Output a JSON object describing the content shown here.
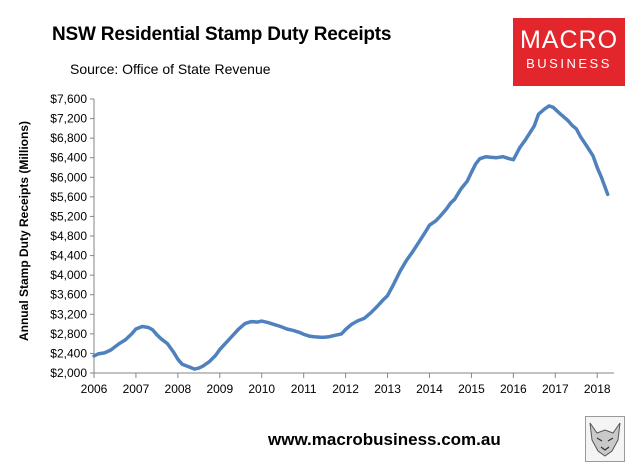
{
  "header": {
    "title": "NSW Residential Stamp Duty Receipts",
    "source": "Source: Office of State Revenue"
  },
  "logo": {
    "line1": "MACRO",
    "line2": "BUSINESS",
    "color": "#e3262b"
  },
  "footer": {
    "url": "www.macrobusiness.com.au"
  },
  "chart_data": {
    "type": "line",
    "title": "NSW Residential Stamp Duty Receipts",
    "ylabel": "Annual Stamp Duty Receipts (Millions)",
    "xlabel": "",
    "xlim": [
      2006,
      2018.4
    ],
    "ylim": [
      2000,
      7600
    ],
    "x_ticks": [
      "2006",
      "2007",
      "2008",
      "2009",
      "2010",
      "2011",
      "2012",
      "2013",
      "2014",
      "2015",
      "2016",
      "2017",
      "2018"
    ],
    "y_ticks": [
      "$2,000",
      "$2,400",
      "$2,800",
      "$3,200",
      "$3,600",
      "$4,000",
      "$4,400",
      "$4,800",
      "$5,200",
      "$5,600",
      "$6,000",
      "$6,400",
      "$6,800",
      "$7,200",
      "$7,600"
    ],
    "grid": false,
    "legend": "none",
    "series": [
      {
        "color": "#4f81bd",
        "x": [
          2006.0,
          2006.1,
          2006.25,
          2006.4,
          2006.6,
          2006.75,
          2006.9,
          2007.0,
          2007.15,
          2007.3,
          2007.4,
          2007.5,
          2007.6,
          2007.75,
          2007.9,
          2008.0,
          2008.1,
          2008.25,
          2008.4,
          2008.5,
          2008.6,
          2008.75,
          2008.9,
          2009.0,
          2009.15,
          2009.3,
          2009.45,
          2009.6,
          2009.75,
          2009.9,
          2010.0,
          2010.15,
          2010.3,
          2010.45,
          2010.6,
          2010.75,
          2010.9,
          2011.0,
          2011.15,
          2011.25,
          2011.4,
          2011.5,
          2011.6,
          2011.75,
          2011.9,
          2012.0,
          2012.15,
          2012.3,
          2012.45,
          2012.6,
          2012.75,
          2012.9,
          2013.0,
          2013.15,
          2013.3,
          2013.45,
          2013.6,
          2013.75,
          2013.9,
          2014.0,
          2014.15,
          2014.25,
          2014.4,
          2014.5,
          2014.6,
          2014.75,
          2014.9,
          2015.0,
          2015.1,
          2015.2,
          2015.35,
          2015.45,
          2015.6,
          2015.75,
          2015.9,
          2016.0,
          2016.15,
          2016.3,
          2016.5,
          2016.6,
          2016.75,
          2016.85,
          2016.95,
          2017.0,
          2017.15,
          2017.3,
          2017.4,
          2017.5,
          2017.6,
          2017.75,
          2017.9,
          2018.0,
          2018.1,
          2018.25
        ],
        "values": [
          2350,
          2390,
          2410,
          2470,
          2600,
          2680,
          2800,
          2900,
          2950,
          2930,
          2880,
          2780,
          2700,
          2600,
          2420,
          2280,
          2180,
          2130,
          2080,
          2100,
          2140,
          2230,
          2360,
          2480,
          2620,
          2760,
          2900,
          3010,
          3050,
          3040,
          3060,
          3030,
          2990,
          2950,
          2900,
          2870,
          2830,
          2790,
          2750,
          2740,
          2730,
          2730,
          2740,
          2770,
          2800,
          2890,
          3000,
          3070,
          3120,
          3230,
          3360,
          3500,
          3580,
          3820,
          4080,
          4300,
          4480,
          4680,
          4880,
          5020,
          5110,
          5200,
          5350,
          5470,
          5550,
          5760,
          5920,
          6100,
          6270,
          6380,
          6420,
          6410,
          6400,
          6420,
          6380,
          6360,
          6600,
          6780,
          7050,
          7290,
          7400,
          7460,
          7430,
          7390,
          7270,
          7160,
          7060,
          6990,
          6830,
          6640,
          6440,
          6200,
          6000,
          5650
        ]
      }
    ]
  }
}
